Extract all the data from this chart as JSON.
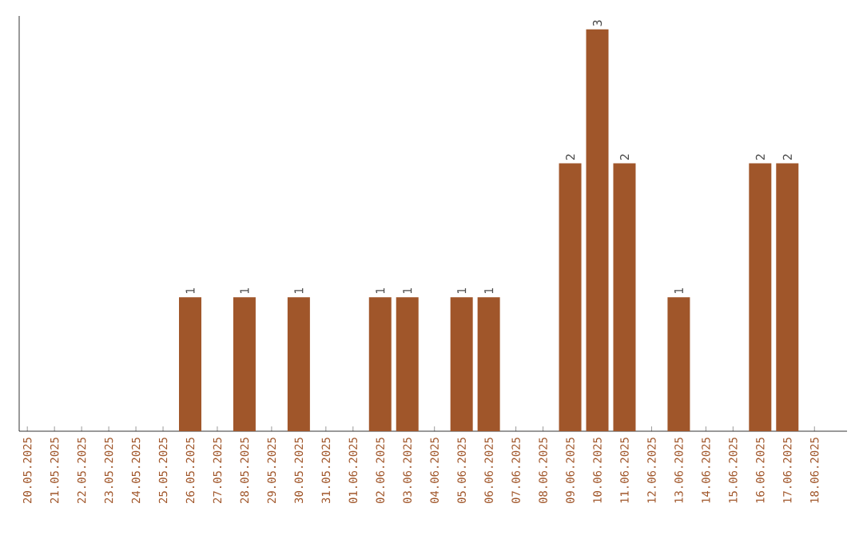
{
  "chart_data": {
    "type": "bar",
    "categories": [
      "20.05.2025",
      "21.05.2025",
      "22.05.2025",
      "23.05.2025",
      "24.05.2025",
      "25.05.2025",
      "26.05.2025",
      "27.05.2025",
      "28.05.2025",
      "29.05.2025",
      "30.05.2025",
      "31.05.2025",
      "01.06.2025",
      "02.06.2025",
      "03.06.2025",
      "04.06.2025",
      "05.06.2025",
      "06.06.2025",
      "07.06.2025",
      "08.06.2025",
      "09.06.2025",
      "10.06.2025",
      "11.06.2025",
      "12.06.2025",
      "13.06.2025",
      "14.06.2025",
      "15.06.2025",
      "16.06.2025",
      "17.06.2025",
      "18.06.2025"
    ],
    "values": [
      0,
      0,
      0,
      0,
      0,
      0,
      1,
      0,
      1,
      0,
      1,
      0,
      0,
      1,
      1,
      0,
      1,
      1,
      0,
      0,
      2,
      3,
      2,
      0,
      1,
      0,
      0,
      2,
      2,
      0
    ],
    "value_labels": [
      null,
      null,
      null,
      null,
      null,
      null,
      "1",
      null,
      "1",
      null,
      "1",
      null,
      null,
      "1",
      "1",
      null,
      "1",
      "1",
      null,
      null,
      "2",
      "3",
      "2",
      null,
      "1",
      null,
      null,
      "2",
      "2",
      null
    ],
    "color": "#a0562a",
    "ylim": [
      0,
      3.1
    ],
    "tick_labels": "x"
  }
}
